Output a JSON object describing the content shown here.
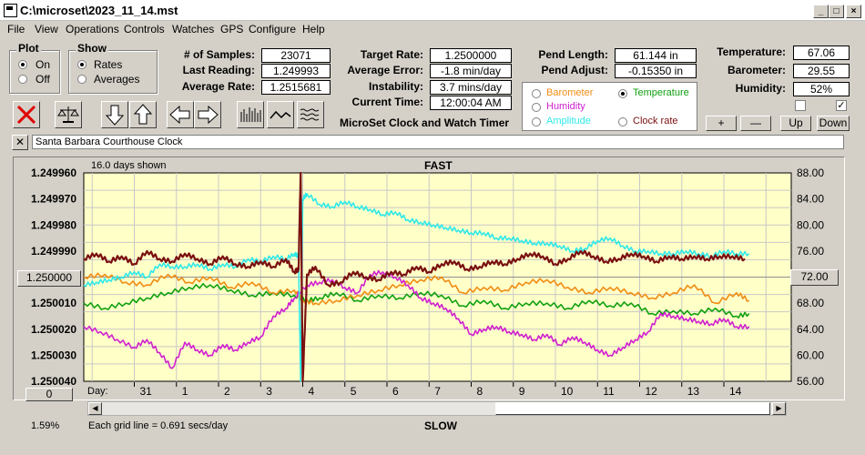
{
  "window": {
    "title": "C:\\microset\\2023_11_14.mst"
  },
  "menu": [
    "File",
    "View",
    "Operations",
    "Controls",
    "Watches",
    "GPS",
    "Configure",
    "Help"
  ],
  "plot_group": {
    "title": "Plot",
    "options": [
      "On",
      "Off"
    ],
    "selected": "On"
  },
  "show_group": {
    "title": "Show",
    "options": [
      "Rates",
      "Averages"
    ],
    "selected": "Rates"
  },
  "stats": {
    "samples_label": "# of Samples:",
    "samples": "23071",
    "last_label": "Last Reading:",
    "last": "1.249993",
    "avg_label": "Average Rate:",
    "avg": "1.2515681"
  },
  "rates": {
    "target_label": "Target Rate:",
    "target": "1.2500000",
    "error_label": "Average Error:",
    "error": "-1.8 min/day",
    "instab_label": "Instability:",
    "instab": "3.7 mins/day",
    "time_label": "Current Time:",
    "time": "12:00:04 AM"
  },
  "pend": {
    "length_label": "Pend Length:",
    "length": "61.144 in",
    "adjust_label": "Pend Adjust:",
    "adjust": "-0.15350 in"
  },
  "env": {
    "temp_label": "Temperature:",
    "temp": "67.06",
    "baro_label": "Barometer:",
    "baro": "29.55",
    "hum_label": "Humidity:",
    "hum": "52%"
  },
  "series_toggles": [
    {
      "name": "Barometer",
      "color": "#f08c14",
      "selected": false
    },
    {
      "name": "Temperature",
      "color": "#10a010",
      "selected": true
    },
    {
      "name": "Humidity",
      "color": "#d020d0",
      "selected": false
    },
    {
      "name": "Amplitude",
      "color": "#30e8e8",
      "selected": false
    },
    {
      "name": "Clock rate",
      "color": "#7a1010",
      "selected": false
    }
  ],
  "adjust_buttons": [
    "+",
    "—",
    "Up",
    "Down"
  ],
  "checkboxes": [
    false,
    true
  ],
  "app_caption": "MicroSet Clock and Watch Timer",
  "clock_name": "Santa Barbara Courthouse Clock",
  "close_x": "✕",
  "chart_footer": {
    "days_shown": "16.0 days shown",
    "fast": "FAST",
    "slow": "SLOW",
    "grid_note": "Each grid line = 0.691 secs/day",
    "percent": "1.59%",
    "day_label": "Day:",
    "left_center_btn": "1.250000",
    "left_zero_btn": "0",
    "right_center_btn": "72.00"
  },
  "chart_data": {
    "type": "line",
    "x_ticks": [
      "31",
      "1",
      "2",
      "3",
      "4",
      "5",
      "6",
      "7",
      "8",
      "9",
      "10",
      "11",
      "12",
      "13",
      "14"
    ],
    "y_left": {
      "ticks": [
        "1.249960",
        "1.249970",
        "1.249980",
        "1.249990",
        "1.250000",
        "1.250010",
        "1.250020",
        "1.250030",
        "1.250040"
      ],
      "range": [
        1.24996,
        1.25004
      ]
    },
    "y_right": {
      "ticks": [
        "88.00",
        "84.00",
        "80.00",
        "76.00",
        "72.00",
        "68.00",
        "64.00",
        "60.00",
        "56.00"
      ],
      "range": [
        56,
        88
      ]
    },
    "grid": true,
    "series": [
      {
        "name": "Clock rate",
        "color": "#7a1010",
        "axis": "left",
        "x": [
          0,
          0.3,
          0.6,
          0.9,
          1.2,
          1.5,
          1.8,
          2.1,
          2.4,
          2.7,
          3.0,
          3.3,
          3.6,
          3.9,
          4.2,
          4.5,
          4.8,
          5.0,
          5.1,
          5.15,
          5.2,
          5.3,
          5.5,
          5.8,
          6.1,
          6.4,
          6.7,
          7.0,
          7.3,
          7.6,
          7.9,
          8.2,
          8.5,
          8.8,
          9.1,
          9.4,
          9.7,
          10.0,
          10.3,
          10.6,
          10.9,
          11.2,
          11.5,
          11.8,
          12.1,
          12.4,
          12.7,
          13.0,
          13.3,
          13.6,
          13.9,
          14.2,
          14.5,
          14.8,
          15.1,
          15.4,
          15.7
        ],
        "y": [
          1.249993,
          1.249991,
          1.249994,
          1.249992,
          1.249995,
          1.24999,
          1.249993,
          1.249994,
          1.249991,
          1.249993,
          1.249995,
          1.249992,
          1.249995,
          1.249996,
          1.249994,
          1.249996,
          1.249993,
          1.249998,
          1.249997,
          1.24996,
          1.25004,
          1.249999,
          1.249996,
          1.250003,
          1.250002,
          1.249998,
          1.25,
          1.250001,
          1.249998,
          1.249999,
          1.249996,
          1.249998,
          1.249995,
          1.249994,
          1.249997,
          1.249996,
          1.249994,
          1.249995,
          1.249993,
          1.249991,
          1.249992,
          1.249995,
          1.249993,
          1.24999,
          1.249992,
          1.249994,
          1.249993,
          1.249991,
          1.249992,
          1.249994,
          1.249992,
          1.249993,
          1.249992,
          1.249993,
          1.249992,
          1.249992,
          1.249993
        ]
      },
      {
        "name": "Amplitude",
        "color": "#30e8e8",
        "axis": "left",
        "x": [
          0,
          0.3,
          0.6,
          0.9,
          1.2,
          1.5,
          1.8,
          2.1,
          2.4,
          2.7,
          3.0,
          3.3,
          3.6,
          3.9,
          4.2,
          4.5,
          4.8,
          5.0,
          5.1,
          5.15,
          5.2,
          5.3,
          5.6,
          5.9,
          6.2,
          6.5,
          6.8,
          7.1,
          7.4,
          7.7,
          8.0,
          8.3,
          8.6,
          8.9,
          9.2,
          9.5,
          9.8,
          10.1,
          10.4,
          10.7,
          11.0,
          11.3,
          11.6,
          11.9,
          12.2,
          12.5,
          12.8,
          13.1,
          13.4,
          13.7,
          14.0,
          14.3,
          14.6,
          14.9,
          15.2,
          15.5,
          15.8
        ],
        "y": [
          1.250003,
          1.250002,
          1.250001,
          1.25,
          1.249998,
          1.25,
          1.249995,
          1.249996,
          1.249996,
          1.249995,
          1.249997,
          1.249995,
          1.249996,
          1.249993,
          1.249994,
          1.249992,
          1.249993,
          1.249991,
          1.249992,
          1.25004,
          1.24997,
          1.249968,
          1.249972,
          1.249973,
          1.249971,
          1.249973,
          1.249974,
          1.249976,
          1.249975,
          1.249978,
          1.249979,
          1.24998,
          1.249981,
          1.249982,
          1.249983,
          1.249983,
          1.249985,
          1.249985,
          1.249986,
          1.249987,
          1.249987,
          1.249988,
          1.24999,
          1.249989,
          1.249986,
          1.249985,
          1.249988,
          1.24999,
          1.24999,
          1.249991,
          1.249991,
          1.24999,
          1.249991,
          1.249992,
          1.24999,
          1.249991,
          1.249991
        ]
      },
      {
        "name": "Barometer",
        "color": "#f08c14",
        "axis": "left",
        "x": [
          0,
          0.5,
          1.0,
          1.5,
          2.0,
          2.5,
          3.0,
          3.5,
          4.0,
          4.5,
          5.0,
          5.2,
          5.5,
          6.0,
          6.5,
          7.0,
          7.5,
          8.0,
          8.5,
          9.0,
          9.5,
          10.0,
          10.5,
          11.0,
          11.5,
          12.0,
          12.5,
          13.0,
          13.5,
          14.0,
          14.5,
          15.0,
          15.5,
          15.8
        ],
        "y": [
          1.25,
          1.249999,
          1.250002,
          1.250003,
          1.249999,
          1.250002,
          1.25,
          1.250004,
          1.250002,
          1.250006,
          1.250005,
          1.250009,
          1.25001,
          1.250009,
          1.250007,
          1.250005,
          1.250003,
          1.250001,
          1.25,
          1.250006,
          1.250004,
          1.250005,
          1.250002,
          1.250001,
          1.250004,
          1.250006,
          1.250004,
          1.250006,
          1.250008,
          1.250006,
          1.250003,
          1.25001,
          1.250006,
          1.250009
        ]
      },
      {
        "name": "Temperature",
        "color": "#10a010",
        "axis": "left",
        "x": [
          0,
          0.5,
          1.0,
          1.5,
          2.0,
          2.5,
          3.0,
          3.5,
          4.0,
          4.5,
          5.0,
          5.3,
          5.6,
          6.0,
          6.5,
          7.0,
          7.5,
          8.0,
          8.5,
          9.0,
          9.5,
          10.0,
          10.5,
          11.0,
          11.5,
          12.0,
          12.5,
          13.0,
          13.5,
          14.0,
          14.5,
          15.0,
          15.5,
          15.8
        ],
        "y": [
          1.25001,
          1.250012,
          1.25001,
          1.250008,
          1.250006,
          1.250004,
          1.250003,
          1.250005,
          1.250007,
          1.250006,
          1.250007,
          1.250009,
          1.250008,
          1.250006,
          1.250009,
          1.250007,
          1.250008,
          1.250006,
          1.250007,
          1.250011,
          1.250009,
          1.250012,
          1.25001,
          1.25001,
          1.250012,
          1.250009,
          1.250011,
          1.25001,
          1.250014,
          1.250013,
          1.250014,
          1.250012,
          1.250015,
          1.250014
        ]
      },
      {
        "name": "Humidity",
        "color": "#d020d0",
        "axis": "left",
        "x": [
          0,
          0.4,
          0.8,
          1.2,
          1.5,
          1.8,
          2.1,
          2.4,
          2.7,
          3.0,
          3.3,
          3.6,
          3.9,
          4.2,
          4.5,
          4.8,
          5.0,
          5.3,
          5.6,
          5.9,
          6.2,
          6.5,
          6.8,
          7.1,
          7.4,
          7.7,
          8.0,
          8.3,
          8.6,
          8.9,
          9.2,
          9.5,
          9.8,
          10.1,
          10.4,
          10.7,
          11.0,
          11.3,
          11.6,
          11.9,
          12.2,
          12.5,
          12.8,
          13.1,
          13.4,
          13.7,
          14.0,
          14.3,
          14.6,
          14.9,
          15.2,
          15.5,
          15.8
        ],
        "y": [
          1.250019,
          1.250021,
          1.250024,
          1.250027,
          1.250024,
          1.250029,
          1.250035,
          1.250025,
          1.250028,
          1.25003,
          1.250026,
          1.250028,
          1.250025,
          1.250023,
          1.250015,
          1.250012,
          1.250008,
          1.250003,
          1.250002,
          1.250001,
          1.250004,
          1.250006,
          1.249999,
          1.249998,
          1.25,
          1.250003,
          1.250008,
          1.25001,
          1.250012,
          1.250016,
          1.250022,
          1.25002,
          1.250019,
          1.250021,
          1.250022,
          1.250024,
          1.250022,
          1.250026,
          1.250023,
          1.250025,
          1.250028,
          1.25003,
          1.250027,
          1.250024,
          1.250021,
          1.250014,
          1.250015,
          1.250016,
          1.250017,
          1.250018,
          1.250016,
          1.250019,
          1.250019
        ]
      }
    ]
  }
}
